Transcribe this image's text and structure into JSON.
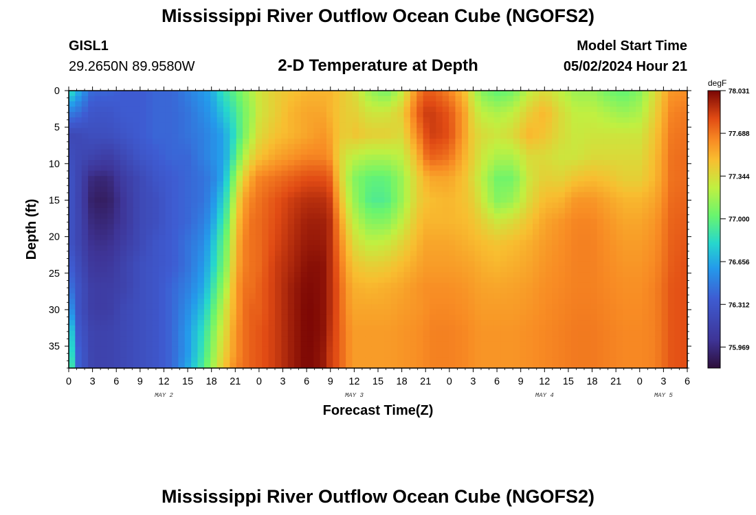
{
  "header": {
    "title": "Mississippi River Outflow Ocean Cube (NGOFS2)",
    "station_id": "GISL1",
    "station_coords": "29.2650N  89.9580W",
    "model_start_label": "Model Start Time",
    "model_start_value": "05/02/2024 Hour 21",
    "footer_title": "Mississippi River Outflow Ocean Cube (NGOFS2)"
  },
  "chart_data": {
    "type": "heatmap",
    "title": "2-D Temperature at Depth",
    "xlabel": "Forecast Time(Z)",
    "ylabel": "Depth (ft)",
    "x_tick_labels": [
      "0",
      "3",
      "6",
      "9",
      "12",
      "15",
      "18",
      "21",
      "0",
      "3",
      "6",
      "9",
      "12",
      "15",
      "18",
      "21",
      "0",
      "3",
      "6",
      "9",
      "12",
      "15",
      "18",
      "21",
      "0",
      "3",
      "6"
    ],
    "x_range_hours": [
      0,
      78
    ],
    "x_tick_step_hours": 3,
    "day_labels": [
      {
        "label": "MAY 2",
        "hour": 12
      },
      {
        "label": "MAY 3",
        "hour": 36
      },
      {
        "label": "MAY 4",
        "hour": 60
      },
      {
        "label": "MAY 5",
        "hour": 75
      }
    ],
    "y_tick_labels": [
      "0",
      "5",
      "10",
      "15",
      "20",
      "25",
      "30",
      "35"
    ],
    "y_tick_values": [
      0,
      5,
      10,
      15,
      20,
      25,
      30,
      35
    ],
    "y_range_ft": [
      0,
      38
    ],
    "colorbar": {
      "unit": "degF",
      "min": 75.8,
      "max": 78.031,
      "tick_labels": [
        "78.031",
        "77.688",
        "77.344",
        "77.000",
        "76.656",
        "76.312",
        "75.969"
      ],
      "tick_values": [
        78.031,
        77.688,
        77.344,
        77.0,
        76.656,
        76.312,
        75.969
      ]
    },
    "time_hours": [
      0,
      1,
      3,
      5,
      7,
      9,
      11,
      13,
      15,
      17,
      18,
      19,
      20,
      21,
      22,
      23,
      24,
      26,
      28,
      30,
      32,
      33,
      34,
      35,
      36,
      38,
      40,
      42,
      44,
      45,
      46,
      48,
      50,
      51,
      52,
      54,
      56,
      58,
      60,
      62,
      64,
      66,
      68,
      70,
      72,
      74,
      76,
      78
    ],
    "depths_ft": [
      0,
      3,
      6,
      9,
      12,
      15,
      18,
      21,
      24,
      27,
      30,
      33,
      36,
      38
    ],
    "temperature_degF": [
      [
        76.9,
        76.5,
        76.2,
        76.25,
        76.3,
        76.3,
        76.3,
        76.3,
        76.4,
        76.5,
        76.7,
        77.0,
        77.1,
        77.2
      ],
      [
        76.7,
        76.45,
        76.2,
        76.2,
        76.2,
        76.2,
        76.2,
        76.2,
        76.25,
        76.3,
        76.3,
        76.35,
        76.4,
        76.4
      ],
      [
        76.4,
        76.3,
        76.25,
        76.15,
        75.95,
        75.9,
        75.95,
        76.0,
        76.05,
        76.1,
        76.1,
        76.15,
        76.15,
        76.15
      ],
      [
        76.4,
        76.3,
        76.25,
        76.1,
        75.95,
        75.9,
        75.95,
        76.0,
        76.05,
        76.1,
        76.1,
        76.15,
        76.15,
        76.15
      ],
      [
        76.35,
        76.35,
        76.3,
        76.2,
        76.1,
        76.05,
        76.05,
        76.1,
        76.15,
        76.15,
        76.2,
        76.2,
        76.2,
        76.2
      ],
      [
        76.35,
        76.35,
        76.35,
        76.3,
        76.2,
        76.2,
        76.2,
        76.2,
        76.25,
        76.25,
        76.25,
        76.25,
        76.25,
        76.25
      ],
      [
        76.4,
        76.4,
        76.4,
        76.35,
        76.3,
        76.25,
        76.25,
        76.3,
        76.3,
        76.3,
        76.3,
        76.3,
        76.3,
        76.3
      ],
      [
        76.4,
        76.4,
        76.4,
        76.4,
        76.35,
        76.35,
        76.35,
        76.35,
        76.35,
        76.4,
        76.4,
        76.4,
        76.4,
        76.4
      ],
      [
        76.5,
        76.45,
        76.45,
        76.4,
        76.4,
        76.4,
        76.4,
        76.45,
        76.45,
        76.5,
        76.55,
        76.6,
        76.6,
        76.65
      ],
      [
        76.6,
        76.55,
        76.5,
        76.5,
        76.45,
        76.45,
        76.5,
        76.55,
        76.6,
        76.65,
        76.75,
        76.85,
        76.9,
        76.95
      ],
      [
        76.65,
        76.6,
        76.55,
        76.55,
        76.5,
        76.55,
        76.6,
        76.7,
        76.75,
        76.85,
        76.95,
        77.05,
        77.1,
        77.15
      ],
      [
        76.8,
        76.7,
        76.6,
        76.6,
        76.6,
        76.7,
        76.8,
        76.9,
        76.95,
        77.05,
        77.15,
        77.25,
        77.3,
        77.35
      ],
      [
        76.9,
        76.8,
        76.7,
        76.7,
        76.8,
        76.9,
        77.0,
        77.1,
        77.15,
        77.25,
        77.35,
        77.4,
        77.45,
        77.5
      ],
      [
        77.0,
        76.9,
        76.85,
        76.95,
        77.15,
        77.3,
        77.4,
        77.45,
        77.5,
        77.55,
        77.55,
        77.6,
        77.6,
        77.65
      ],
      [
        77.1,
        77.05,
        77.05,
        77.2,
        77.4,
        77.55,
        77.6,
        77.65,
        77.65,
        77.7,
        77.7,
        77.7,
        77.7,
        77.7
      ],
      [
        77.2,
        77.15,
        77.2,
        77.35,
        77.55,
        77.65,
        77.7,
        77.7,
        77.7,
        77.7,
        77.75,
        77.75,
        77.75,
        77.75
      ],
      [
        77.3,
        77.3,
        77.35,
        77.45,
        77.65,
        77.7,
        77.72,
        77.72,
        77.72,
        77.75,
        77.75,
        77.78,
        77.78,
        77.78
      ],
      [
        77.4,
        77.4,
        77.45,
        77.55,
        77.7,
        77.78,
        77.8,
        77.82,
        77.85,
        77.85,
        77.85,
        77.85,
        77.85,
        77.85
      ],
      [
        77.45,
        77.5,
        77.5,
        77.6,
        77.75,
        77.85,
        77.88,
        77.9,
        77.92,
        77.95,
        77.95,
        77.95,
        77.95,
        77.95
      ],
      [
        77.5,
        77.55,
        77.55,
        77.65,
        77.8,
        77.9,
        77.95,
        77.97,
        78.0,
        78.02,
        78.03,
        78.03,
        78.03,
        78.03
      ],
      [
        77.5,
        77.55,
        77.6,
        77.65,
        77.8,
        77.9,
        77.95,
        77.97,
        78.0,
        78.0,
        78.0,
        78.0,
        77.98,
        77.98
      ],
      [
        77.5,
        77.5,
        77.55,
        77.6,
        77.75,
        77.85,
        77.9,
        77.9,
        77.9,
        77.9,
        77.9,
        77.88,
        77.85,
        77.85
      ],
      [
        77.45,
        77.45,
        77.45,
        77.4,
        77.45,
        77.55,
        77.65,
        77.7,
        77.75,
        77.78,
        77.78,
        77.78,
        77.78,
        77.78
      ],
      [
        77.4,
        77.4,
        77.4,
        77.3,
        77.25,
        77.3,
        77.4,
        77.5,
        77.55,
        77.6,
        77.62,
        77.65,
        77.65,
        77.65
      ],
      [
        77.35,
        77.4,
        77.45,
        77.25,
        77.1,
        77.15,
        77.25,
        77.35,
        77.45,
        77.52,
        77.55,
        77.58,
        77.58,
        77.58
      ],
      [
        77.15,
        77.3,
        77.4,
        77.2,
        77.0,
        76.95,
        77.1,
        77.25,
        77.4,
        77.5,
        77.55,
        77.58,
        77.58,
        77.58
      ],
      [
        77.05,
        77.3,
        77.4,
        77.2,
        77.0,
        76.95,
        77.1,
        77.28,
        77.42,
        77.52,
        77.55,
        77.58,
        77.58,
        77.58
      ],
      [
        77.25,
        77.4,
        77.35,
        77.25,
        77.15,
        77.15,
        77.25,
        77.38,
        77.48,
        77.55,
        77.58,
        77.6,
        77.6,
        77.6
      ],
      [
        77.65,
        77.75,
        77.65,
        77.5,
        77.4,
        77.4,
        77.45,
        77.5,
        77.55,
        77.6,
        77.6,
        77.62,
        77.62,
        77.62
      ],
      [
        77.75,
        77.85,
        77.8,
        77.7,
        77.5,
        77.45,
        77.5,
        77.55,
        77.58,
        77.62,
        77.62,
        77.64,
        77.64,
        77.64
      ],
      [
        77.75,
        77.85,
        77.85,
        77.75,
        77.55,
        77.48,
        77.5,
        77.55,
        77.58,
        77.62,
        77.64,
        77.66,
        77.66,
        77.66
      ],
      [
        77.65,
        77.78,
        77.8,
        77.7,
        77.55,
        77.5,
        77.5,
        77.55,
        77.58,
        77.62,
        77.64,
        77.66,
        77.66,
        77.66
      ],
      [
        77.45,
        77.55,
        77.55,
        77.5,
        77.45,
        77.45,
        77.48,
        77.52,
        77.56,
        77.6,
        77.62,
        77.64,
        77.64,
        77.64
      ],
      [
        77.25,
        77.35,
        77.4,
        77.4,
        77.35,
        77.4,
        77.45,
        77.5,
        77.55,
        77.58,
        77.6,
        77.62,
        77.62,
        77.62
      ],
      [
        77.1,
        77.25,
        77.35,
        77.3,
        77.25,
        77.3,
        77.4,
        77.48,
        77.52,
        77.56,
        77.58,
        77.6,
        77.6,
        77.6
      ],
      [
        77.0,
        77.2,
        77.3,
        77.2,
        77.05,
        77.1,
        77.3,
        77.45,
        77.5,
        77.55,
        77.58,
        77.6,
        77.6,
        77.6
      ],
      [
        77.05,
        77.25,
        77.35,
        77.2,
        77.05,
        77.15,
        77.35,
        77.48,
        77.52,
        77.56,
        77.58,
        77.6,
        77.6,
        77.6
      ],
      [
        77.25,
        77.4,
        77.5,
        77.35,
        77.3,
        77.35,
        77.45,
        77.52,
        77.55,
        77.58,
        77.6,
        77.62,
        77.62,
        77.62
      ],
      [
        77.35,
        77.5,
        77.45,
        77.35,
        77.4,
        77.48,
        77.55,
        77.58,
        77.6,
        77.62,
        77.63,
        77.64,
        77.64,
        77.64
      ],
      [
        77.25,
        77.35,
        77.35,
        77.3,
        77.38,
        77.5,
        77.6,
        77.62,
        77.63,
        77.64,
        77.65,
        77.66,
        77.66,
        77.66
      ],
      [
        77.15,
        77.25,
        77.28,
        77.3,
        77.45,
        77.6,
        77.65,
        77.66,
        77.66,
        77.66,
        77.67,
        77.68,
        77.68,
        77.68
      ],
      [
        77.15,
        77.25,
        77.3,
        77.35,
        77.48,
        77.6,
        77.65,
        77.66,
        77.66,
        77.66,
        77.67,
        77.68,
        77.68,
        77.68
      ],
      [
        77.05,
        77.2,
        77.3,
        77.35,
        77.45,
        77.55,
        77.6,
        77.62,
        77.63,
        77.64,
        77.65,
        77.66,
        77.66,
        77.66
      ],
      [
        77.0,
        77.15,
        77.3,
        77.35,
        77.4,
        77.5,
        77.55,
        77.58,
        77.6,
        77.62,
        77.63,
        77.64,
        77.64,
        77.64
      ],
      [
        77.1,
        77.2,
        77.3,
        77.35,
        77.4,
        77.5,
        77.55,
        77.58,
        77.6,
        77.62,
        77.63,
        77.64,
        77.64,
        77.64
      ],
      [
        77.35,
        77.4,
        77.45,
        77.48,
        77.5,
        77.55,
        77.6,
        77.62,
        77.64,
        77.66,
        77.66,
        77.66,
        77.66,
        77.66
      ],
      [
        77.6,
        77.65,
        77.68,
        77.7,
        77.7,
        77.72,
        77.74,
        77.75,
        77.76,
        77.78,
        77.78,
        77.78,
        77.78,
        77.78
      ],
      [
        77.62,
        77.68,
        77.7,
        77.72,
        77.72,
        77.74,
        77.76,
        77.78,
        77.8,
        77.8,
        77.8,
        77.8,
        77.8,
        77.8
      ]
    ]
  }
}
